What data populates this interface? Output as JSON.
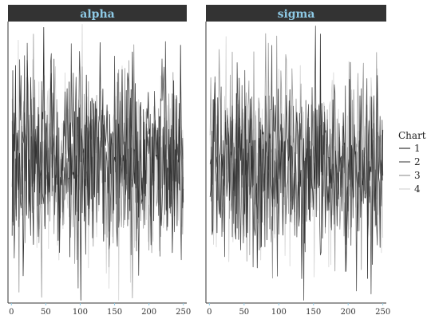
{
  "chart_data": {
    "type": "line",
    "panels": [
      {
        "name": "alpha",
        "ylim": [
          -1,
          1
        ]
      },
      {
        "name": "sigma",
        "ylim": [
          -1,
          1
        ]
      }
    ],
    "x": {
      "ticks": [
        0,
        50,
        100,
        150,
        200,
        250
      ],
      "range": [
        -5,
        255
      ],
      "n_iterations": 250
    },
    "legend": {
      "title": "Chart",
      "placement": "right",
      "entries": [
        "1",
        "2",
        "3",
        "4"
      ]
    },
    "series_colors": [
      "#333333",
      "#555555",
      "#9a9a9a",
      "#d4d4d4"
    ],
    "strip_color": "#333333",
    "strip_text_color": "#8ecae6",
    "grid": false
  }
}
